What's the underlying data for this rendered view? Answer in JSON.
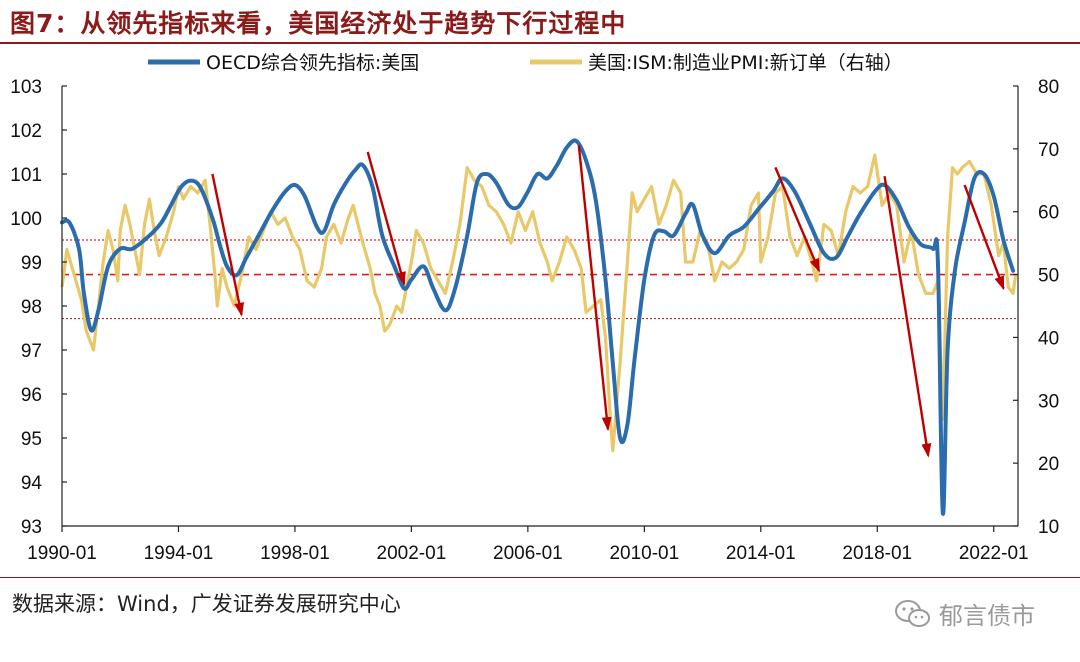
{
  "header": {
    "figure_title": "图7：从领先指标来看，美国经济处于趋势下行过程中"
  },
  "footer": {
    "source": "数据来源：Wind，广发证券发展研究中心",
    "watermark": "郁言债市"
  },
  "chart_data": {
    "type": "line",
    "title": "图7：从领先指标来看，美国经济处于趋势下行过程中",
    "x_range": [
      "1990-01",
      "2022-10"
    ],
    "x_tick_labels": [
      "1990-01",
      "1994-01",
      "1998-01",
      "2002-01",
      "2006-01",
      "2010-01",
      "2014-01",
      "2018-01",
      "2022-01"
    ],
    "y_left": {
      "min": 93,
      "max": 103,
      "ticks": [
        "93",
        "94",
        "95",
        "96",
        "97",
        "98",
        "99",
        "100",
        "101",
        "102",
        "103"
      ]
    },
    "y_right": {
      "min": 10,
      "max": 80,
      "ticks": [
        "10",
        "20",
        "30",
        "40",
        "50",
        "60",
        "70",
        "80"
      ]
    },
    "legend": {
      "placement": "top"
    },
    "colors": {
      "oecd": "#2a6cad",
      "ism": "#e9c86a",
      "arrow": "#c00000",
      "ref_line": "#d42020"
    },
    "series": [
      {
        "name": "OECD综合领先指标:美国",
        "axis": "left",
        "points": [
          [
            "1990-01",
            99.9
          ],
          [
            "1990-04",
            99.9
          ],
          [
            "1990-08",
            99.3
          ],
          [
            "1990-10",
            98.3
          ],
          [
            "1991-01",
            97.45
          ],
          [
            "1991-04",
            97.9
          ],
          [
            "1991-08",
            98.9
          ],
          [
            "1992-01",
            99.3
          ],
          [
            "1992-06",
            99.3
          ],
          [
            "1993-01",
            99.6
          ],
          [
            "1993-06",
            99.9
          ],
          [
            "1993-10",
            100.3
          ],
          [
            "1994-02",
            100.7
          ],
          [
            "1994-06",
            100.85
          ],
          [
            "1994-10",
            100.7
          ],
          [
            "1995-03",
            100.0
          ],
          [
            "1995-06",
            99.4
          ],
          [
            "1995-09",
            98.9
          ],
          [
            "1996-01",
            98.7
          ],
          [
            "1996-05",
            99.1
          ],
          [
            "1996-10",
            99.6
          ],
          [
            "1997-04",
            100.2
          ],
          [
            "1997-09",
            100.6
          ],
          [
            "1998-01",
            100.75
          ],
          [
            "1998-05",
            100.5
          ],
          [
            "1998-10",
            99.8
          ],
          [
            "1999-01",
            99.7
          ],
          [
            "1999-05",
            100.3
          ],
          [
            "1999-10",
            100.8
          ],
          [
            "2000-02",
            101.1
          ],
          [
            "2000-05",
            101.2
          ],
          [
            "2000-09",
            100.7
          ],
          [
            "2001-01",
            99.6
          ],
          [
            "2001-06",
            98.9
          ],
          [
            "2001-10",
            98.4
          ],
          [
            "2002-01",
            98.6
          ],
          [
            "2002-06",
            98.9
          ],
          [
            "2002-10",
            98.4
          ],
          [
            "2003-03",
            97.9
          ],
          [
            "2003-07",
            98.4
          ],
          [
            "2003-12",
            99.6
          ],
          [
            "2004-04",
            100.8
          ],
          [
            "2004-08",
            101.0
          ],
          [
            "2004-12",
            100.8
          ],
          [
            "2005-05",
            100.3
          ],
          [
            "2005-09",
            100.25
          ],
          [
            "2006-01",
            100.6
          ],
          [
            "2006-05",
            101.0
          ],
          [
            "2006-09",
            100.9
          ],
          [
            "2007-01",
            101.2
          ],
          [
            "2007-05",
            101.6
          ],
          [
            "2007-09",
            101.75
          ],
          [
            "2008-01",
            101.3
          ],
          [
            "2008-05",
            100.4
          ],
          [
            "2008-09",
            98.6
          ],
          [
            "2008-12",
            96.7
          ],
          [
            "2009-03",
            95.0
          ],
          [
            "2009-06",
            95.3
          ],
          [
            "2009-09",
            96.8
          ],
          [
            "2010-01",
            98.6
          ],
          [
            "2010-05",
            99.6
          ],
          [
            "2010-09",
            99.7
          ],
          [
            "2011-01",
            99.6
          ],
          [
            "2011-06",
            100.1
          ],
          [
            "2011-09",
            100.3
          ],
          [
            "2012-01",
            99.6
          ],
          [
            "2012-06",
            99.2
          ],
          [
            "2012-12",
            99.6
          ],
          [
            "2013-06",
            99.8
          ],
          [
            "2013-12",
            100.2
          ],
          [
            "2014-06",
            100.6
          ],
          [
            "2014-10",
            100.9
          ],
          [
            "2015-03",
            100.6
          ],
          [
            "2015-09",
            99.9
          ],
          [
            "2016-03",
            99.2
          ],
          [
            "2016-08",
            99.1
          ],
          [
            "2017-01",
            99.6
          ],
          [
            "2017-06",
            100.1
          ],
          [
            "2017-12",
            100.6
          ],
          [
            "2018-04",
            100.75
          ],
          [
            "2018-09",
            100.4
          ],
          [
            "2019-02",
            99.8
          ],
          [
            "2019-07",
            99.4
          ],
          [
            "2019-12",
            99.3
          ],
          [
            "2020-02",
            99.0
          ],
          [
            "2020-04",
            93.3
          ],
          [
            "2020-06",
            97.0
          ],
          [
            "2020-09",
            98.8
          ],
          [
            "2021-01",
            99.9
          ],
          [
            "2021-05",
            100.9
          ],
          [
            "2021-09",
            101.0
          ],
          [
            "2022-01",
            100.5
          ],
          [
            "2022-05",
            99.5
          ],
          [
            "2022-09",
            98.8
          ]
        ]
      },
      {
        "name": "美国:ISM:制造业PMI:新订单（右轴）",
        "axis": "right",
        "points": [
          [
            "1990-01",
            48
          ],
          [
            "1990-03",
            54
          ],
          [
            "1990-06",
            50
          ],
          [
            "1990-09",
            46
          ],
          [
            "1990-11",
            41
          ],
          [
            "1991-01",
            39
          ],
          [
            "1991-02",
            38
          ],
          [
            "1991-04",
            45
          ],
          [
            "1991-06",
            52
          ],
          [
            "1991-08",
            57
          ],
          [
            "1991-10",
            54
          ],
          [
            "1991-12",
            49
          ],
          [
            "1992-01",
            57
          ],
          [
            "1992-03",
            61
          ],
          [
            "1992-05",
            58
          ],
          [
            "1992-07",
            54
          ],
          [
            "1992-09",
            50
          ],
          [
            "1992-11",
            58
          ],
          [
            "1993-01",
            62
          ],
          [
            "1993-03",
            57
          ],
          [
            "1993-05",
            53
          ],
          [
            "1993-08",
            56
          ],
          [
            "1993-11",
            60
          ],
          [
            "1994-01",
            64
          ],
          [
            "1994-03",
            62
          ],
          [
            "1994-06",
            64
          ],
          [
            "1994-09",
            63
          ],
          [
            "1994-12",
            65
          ],
          [
            "1995-02",
            58
          ],
          [
            "1995-04",
            50
          ],
          [
            "1995-05",
            45
          ],
          [
            "1995-07",
            51
          ],
          [
            "1995-09",
            48
          ],
          [
            "1995-12",
            45
          ],
          [
            "1996-03",
            50
          ],
          [
            "1996-06",
            56
          ],
          [
            "1996-09",
            54
          ],
          [
            "1996-12",
            57
          ],
          [
            "1997-03",
            60
          ],
          [
            "1997-06",
            58
          ],
          [
            "1997-09",
            59
          ],
          [
            "1997-12",
            56
          ],
          [
            "1998-03",
            54
          ],
          [
            "1998-06",
            49
          ],
          [
            "1998-09",
            48
          ],
          [
            "1998-12",
            51
          ],
          [
            "1999-02",
            56
          ],
          [
            "1999-05",
            58
          ],
          [
            "1999-08",
            55
          ],
          [
            "1999-11",
            59
          ],
          [
            "2000-01",
            61
          ],
          [
            "2000-03",
            58
          ],
          [
            "2000-05",
            55
          ],
          [
            "2000-08",
            51
          ],
          [
            "2000-10",
            47
          ],
          [
            "2000-12",
            45
          ],
          [
            "2001-02",
            41
          ],
          [
            "2001-04",
            42
          ],
          [
            "2001-07",
            45
          ],
          [
            "2001-09",
            44
          ],
          [
            "2001-11",
            48
          ],
          [
            "2002-01",
            52
          ],
          [
            "2002-03",
            57
          ],
          [
            "2002-06",
            55
          ],
          [
            "2002-09",
            51
          ],
          [
            "2002-12",
            49
          ],
          [
            "2003-03",
            47
          ],
          [
            "2003-06",
            52
          ],
          [
            "2003-09",
            58
          ],
          [
            "2003-12",
            67
          ],
          [
            "2004-03",
            65
          ],
          [
            "2004-06",
            64
          ],
          [
            "2004-09",
            61
          ],
          [
            "2004-12",
            60
          ],
          [
            "2005-03",
            58
          ],
          [
            "2005-06",
            55
          ],
          [
            "2005-09",
            60
          ],
          [
            "2005-12",
            57
          ],
          [
            "2006-03",
            60
          ],
          [
            "2006-06",
            55
          ],
          [
            "2006-09",
            52
          ],
          [
            "2006-11",
            49
          ],
          [
            "2007-02",
            52
          ],
          [
            "2007-05",
            56
          ],
          [
            "2007-08",
            54
          ],
          [
            "2007-11",
            51
          ],
          [
            "2008-01",
            44
          ],
          [
            "2008-04",
            45
          ],
          [
            "2008-07",
            46
          ],
          [
            "2008-09",
            40
          ],
          [
            "2008-11",
            27
          ],
          [
            "2008-12",
            22
          ],
          [
            "2009-03",
            36
          ],
          [
            "2009-06",
            52
          ],
          [
            "2009-08",
            63
          ],
          [
            "2009-10",
            60
          ],
          [
            "2010-01",
            62
          ],
          [
            "2010-04",
            64
          ],
          [
            "2010-07",
            58
          ],
          [
            "2010-10",
            61
          ],
          [
            "2011-01",
            65
          ],
          [
            "2011-04",
            63
          ],
          [
            "2011-06",
            52
          ],
          [
            "2011-09",
            52
          ],
          [
            "2011-12",
            57
          ],
          [
            "2012-03",
            55
          ],
          [
            "2012-06",
            49
          ],
          [
            "2012-09",
            52
          ],
          [
            "2012-12",
            51
          ],
          [
            "2013-03",
            52
          ],
          [
            "2013-06",
            54
          ],
          [
            "2013-09",
            61
          ],
          [
            "2013-12",
            63
          ],
          [
            "2014-01",
            52
          ],
          [
            "2014-04",
            56
          ],
          [
            "2014-07",
            63
          ],
          [
            "2014-10",
            64
          ],
          [
            "2015-01",
            56
          ],
          [
            "2015-04",
            53
          ],
          [
            "2015-07",
            56
          ],
          [
            "2015-10",
            52
          ],
          [
            "2015-12",
            49
          ],
          [
            "2016-03",
            58
          ],
          [
            "2016-06",
            57
          ],
          [
            "2016-09",
            53
          ],
          [
            "2016-12",
            60
          ],
          [
            "2017-03",
            64
          ],
          [
            "2017-06",
            63
          ],
          [
            "2017-09",
            64
          ],
          [
            "2017-12",
            69
          ],
          [
            "2018-03",
            61
          ],
          [
            "2018-06",
            63
          ],
          [
            "2018-09",
            61
          ],
          [
            "2018-12",
            52
          ],
          [
            "2019-03",
            57
          ],
          [
            "2019-06",
            50
          ],
          [
            "2019-09",
            47
          ],
          [
            "2019-12",
            47
          ],
          [
            "2020-02",
            49
          ],
          [
            "2020-04",
            27
          ],
          [
            "2020-06",
            56
          ],
          [
            "2020-08",
            67
          ],
          [
            "2020-10",
            66
          ],
          [
            "2020-12",
            67
          ],
          [
            "2021-03",
            68
          ],
          [
            "2021-06",
            66
          ],
          [
            "2021-09",
            66
          ],
          [
            "2021-12",
            61
          ],
          [
            "2022-03",
            53
          ],
          [
            "2022-05",
            55
          ],
          [
            "2022-07",
            48
          ],
          [
            "2022-09",
            47
          ],
          [
            "2022-10",
            50
          ]
        ]
      }
    ],
    "reference_lines": [
      {
        "axis": "right",
        "value": 50,
        "style": "dashed"
      },
      {
        "axis": "right",
        "value": 55.5,
        "style": "dotted"
      },
      {
        "axis": "right",
        "value": 43,
        "style": "dotted"
      }
    ],
    "annotations": [
      {
        "type": "arrow",
        "from": [
          "1995-03",
          101.0
        ],
        "to": [
          "1996-03",
          97.8
        ]
      },
      {
        "type": "arrow",
        "from": [
          "2000-07",
          101.5
        ],
        "to": [
          "2001-10",
          98.5
        ]
      },
      {
        "type": "arrow",
        "from": [
          "2007-10",
          101.65
        ],
        "to": [
          "2008-10",
          95.2
        ]
      },
      {
        "type": "arrow",
        "from": [
          "2014-07",
          101.15
        ],
        "to": [
          "2016-01",
          98.8
        ]
      },
      {
        "type": "arrow",
        "from": [
          "2018-04",
          100.95
        ],
        "to": [
          "2019-10",
          94.6
        ]
      },
      {
        "type": "arrow",
        "from": [
          "2021-01",
          100.75
        ],
        "to": [
          "2022-05",
          98.4
        ]
      }
    ]
  }
}
